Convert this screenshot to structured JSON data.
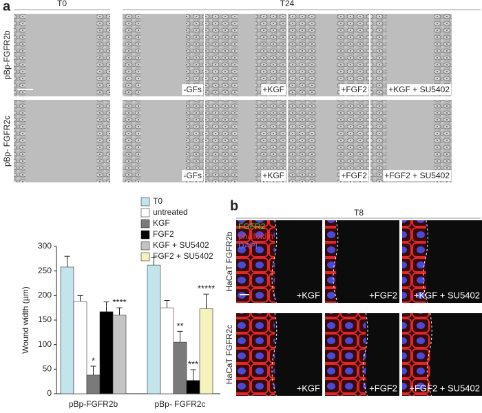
{
  "panel_a": {
    "label": "a",
    "time_labels": [
      "T0",
      "T24"
    ],
    "row_labels": [
      "pBp-FGFR2b",
      "pBp- FGFR2c"
    ],
    "tile_labels": [
      [
        "-GFs",
        "+KGF",
        "+FGF2",
        "+KGF + SU5402"
      ],
      [
        "-GFs",
        "+KGF",
        "+FGF2",
        "+FGF2 + SU5402"
      ]
    ]
  },
  "chart_data": {
    "type": "bar",
    "y_label": "Wound width (µm)",
    "categories": [
      "pBp-FGFR2b",
      "pBp- FGFR2c"
    ],
    "ylim": [
      0,
      300
    ],
    "yticks": [
      0,
      50,
      100,
      150,
      200,
      250,
      300
    ],
    "legend": "top-right",
    "series": [
      {
        "name": "T0",
        "color": "#c2e4ea",
        "values": [
          258,
          262
        ],
        "errors": [
          22,
          15
        ],
        "significance": [
          null,
          null
        ]
      },
      {
        "name": "untreated",
        "color": "#ffffff",
        "values": [
          188,
          175
        ],
        "errors": [
          12,
          15
        ],
        "significance": [
          null,
          null
        ]
      },
      {
        "name": "KGF",
        "color": "#7a7a7a",
        "values": [
          38,
          105
        ],
        "errors": [
          18,
          22
        ],
        "significance": [
          "*",
          "**"
        ]
      },
      {
        "name": "FGF2",
        "color": "#000000",
        "values": [
          167,
          27
        ],
        "errors": [
          20,
          22
        ],
        "significance": [
          null,
          "***"
        ]
      },
      {
        "name": "KGF + SU5402",
        "color": "#c4c4c4",
        "values": [
          160,
          null
        ],
        "errors": [
          15,
          null
        ],
        "significance": [
          "****",
          null
        ]
      },
      {
        "name": "FGF2 + SU5402",
        "color": "#f6f2bd",
        "values": [
          null,
          173
        ],
        "errors": [
          null,
          30
        ],
        "significance": [
          null,
          "*****"
        ]
      }
    ]
  },
  "panel_b": {
    "label": "b",
    "time_label": "T8",
    "row_labels": [
      "HaCaT FGFR2b",
      "HaCaT FGFR2c"
    ],
    "stain_labels": [
      "FGFR2",
      "phalloidin",
      "DAPI"
    ],
    "tile_labels": [
      [
        "+KGF",
        "+FGF2",
        "+KGF + SU5402"
      ],
      [
        "+KGF",
        "+FGF2",
        "+FGF2 + SU5402"
      ]
    ]
  }
}
